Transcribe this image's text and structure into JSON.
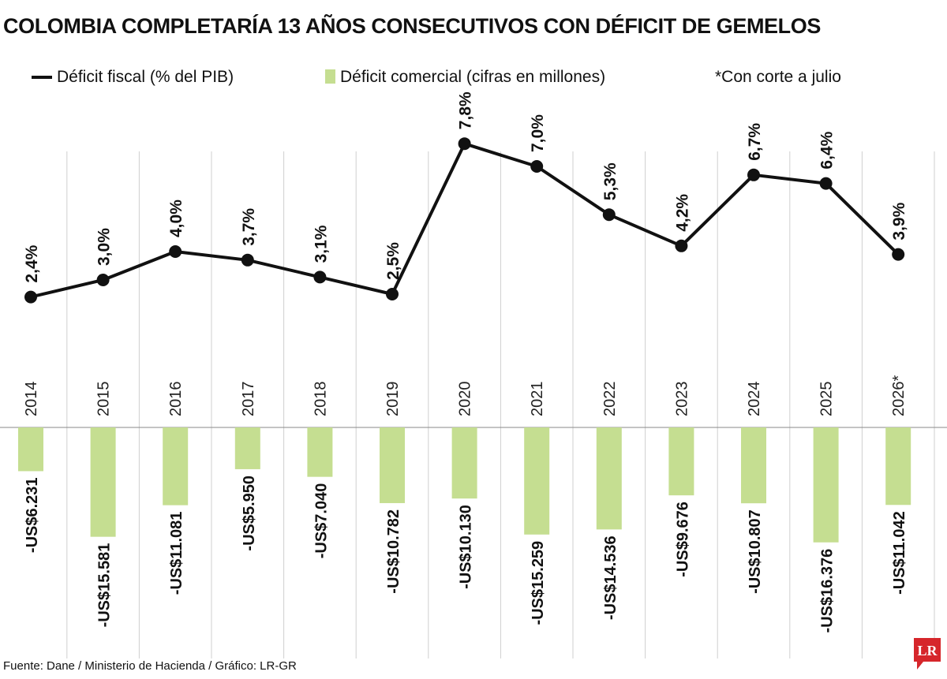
{
  "title": "COLOMBIA COMPLETARÍA 13 AÑOS CONSECUTIVOS CON DÉFICIT DE GEMELOS",
  "legend": {
    "line": "Déficit fiscal (% del PIB)",
    "bar": "Déficit comercial (cifras en millones)",
    "note": "*Con corte a julio"
  },
  "source": "Fuente: Dane / Ministerio de Hacienda / Gráfico: LR-GR",
  "logo": {
    "text": "LR",
    "color": "#d6262b"
  },
  "colors": {
    "bar": "#c5de91",
    "line": "#111111",
    "grid": "#cfcfcf"
  },
  "chart_data": {
    "type": "bar+line",
    "categories": [
      "2014",
      "2015",
      "2016",
      "2017",
      "2018",
      "2019",
      "2020",
      "2021",
      "2022",
      "2023",
      "2024",
      "2025",
      "2026*"
    ],
    "series": [
      {
        "name": "Déficit fiscal (% del PIB)",
        "type": "line",
        "values": [
          2.4,
          3.0,
          4.0,
          3.7,
          3.1,
          2.5,
          7.8,
          7.0,
          5.3,
          4.2,
          6.7,
          6.4,
          3.9
        ],
        "labels": [
          "2,4%",
          "3,0%",
          "4,0%",
          "3,7%",
          "3,1%",
          "2,5%",
          "7,8%",
          "7,0%",
          "5,3%",
          "4,2%",
          "6,7%",
          "6,4%",
          "3,9%"
        ]
      },
      {
        "name": "Déficit comercial (cifras en millones)",
        "type": "bar",
        "values": [
          -6231,
          -15581,
          -11081,
          -5950,
          -7040,
          -10782,
          -10130,
          -15259,
          -14536,
          -9676,
          -10807,
          -16376,
          -11042
        ],
        "labels": [
          "-US$6.231",
          "-US$15.581",
          "-US$11.081",
          "-US$5.950",
          "-US$7.040",
          "-US$10.782",
          "-US$10.130",
          "-US$15.259",
          "-US$14.536",
          "-US$9.676",
          "-US$10.807",
          "-US$16.376",
          "-US$11.042"
        ]
      }
    ]
  }
}
